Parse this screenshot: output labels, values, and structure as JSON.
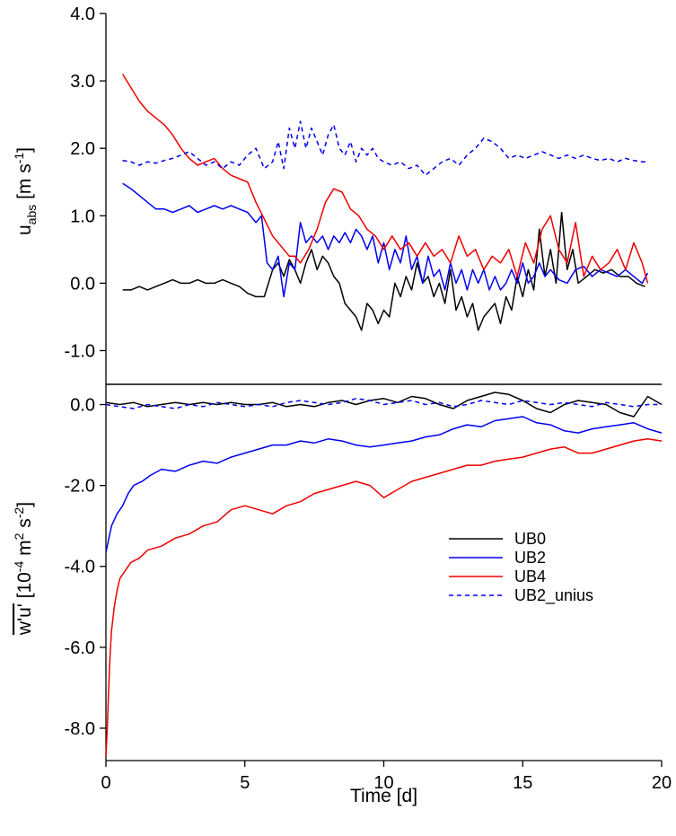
{
  "chart_data": [
    {
      "type": "line",
      "panel": "top",
      "ylabel": "u_abs [m s^-1]",
      "ylabel_parts": {
        "main": "u",
        "sub": "abs",
        "bracket_open": " [m s",
        "sup": "-1",
        "bracket_close": "]"
      },
      "xlim": [
        0,
        20
      ],
      "ylim": [
        -1.5,
        4.0
      ],
      "yticks": [
        -1.0,
        0.0,
        1.0,
        2.0,
        3.0,
        4.0
      ],
      "ytick_labels": [
        "-1.0",
        "0.0",
        "1.0",
        "2.0",
        "3.0",
        "4.0"
      ],
      "series": [
        {
          "name": "UB0",
          "color": "#000000",
          "dash": "solid",
          "x": [
            0.6,
            0.9,
            1.2,
            1.5,
            1.8,
            2.1,
            2.4,
            2.7,
            3.0,
            3.3,
            3.6,
            3.9,
            4.2,
            4.5,
            4.8,
            5.1,
            5.4,
            5.7,
            6.0,
            6.2,
            6.4,
            6.6,
            6.8,
            7.0,
            7.2,
            7.4,
            7.6,
            7.8,
            8.0,
            8.2,
            8.4,
            8.6,
            8.8,
            9.0,
            9.2,
            9.4,
            9.6,
            9.8,
            10.0,
            10.2,
            10.4,
            10.6,
            10.8,
            11.0,
            11.2,
            11.4,
            11.6,
            11.8,
            12.0,
            12.2,
            12.4,
            12.6,
            12.8,
            13.0,
            13.2,
            13.4,
            13.6,
            13.8,
            14.0,
            14.2,
            14.4,
            14.6,
            14.8,
            15.0,
            15.2,
            15.4,
            15.6,
            15.8,
            16.0,
            16.2,
            16.4,
            16.6,
            16.8,
            17.0,
            17.3,
            17.6,
            17.9,
            18.2,
            18.5,
            18.8,
            19.1,
            19.4
          ],
          "values": [
            -0.1,
            -0.1,
            -0.05,
            -0.1,
            -0.05,
            0.0,
            0.05,
            0.0,
            0.0,
            0.05,
            0.0,
            0.0,
            0.05,
            0.0,
            -0.05,
            -0.15,
            -0.2,
            -0.2,
            0.2,
            0.3,
            0.1,
            0.35,
            0.2,
            0.0,
            0.3,
            0.5,
            0.2,
            0.4,
            0.3,
            0.1,
            0.0,
            -0.3,
            -0.4,
            -0.5,
            -0.7,
            -0.3,
            -0.4,
            -0.6,
            -0.4,
            -0.5,
            0.0,
            -0.2,
            0.1,
            -0.1,
            0.3,
            0.0,
            0.1,
            -0.2,
            0.0,
            -0.3,
            0.2,
            -0.4,
            -0.2,
            -0.5,
            -0.3,
            -0.7,
            -0.5,
            -0.4,
            -0.3,
            -0.6,
            -0.2,
            -0.4,
            0.1,
            -0.2,
            0.2,
            -0.1,
            0.8,
            0.1,
            0.5,
            0.0,
            1.05,
            0.2,
            0.5,
            0.0,
            0.1,
            0.2,
            0.15,
            0.2,
            0.1,
            0.1,
            0.0,
            -0.05
          ]
        },
        {
          "name": "UB2",
          "color": "#0000ee",
          "dash": "solid",
          "x": [
            0.6,
            0.9,
            1.2,
            1.5,
            1.8,
            2.1,
            2.4,
            2.7,
            3.0,
            3.3,
            3.6,
            3.9,
            4.2,
            4.5,
            4.8,
            5.1,
            5.4,
            5.6,
            5.8,
            6.0,
            6.2,
            6.4,
            6.6,
            6.8,
            7.0,
            7.2,
            7.4,
            7.6,
            7.8,
            8.0,
            8.2,
            8.4,
            8.6,
            8.8,
            9.0,
            9.2,
            9.4,
            9.6,
            9.8,
            10.0,
            10.2,
            10.4,
            10.6,
            10.8,
            11.0,
            11.2,
            11.4,
            11.6,
            11.8,
            12.0,
            12.2,
            12.4,
            12.6,
            12.8,
            13.0,
            13.2,
            13.4,
            13.6,
            13.8,
            14.0,
            14.2,
            14.4,
            14.6,
            14.8,
            15.0,
            15.2,
            15.4,
            15.6,
            15.8,
            16.0,
            16.3,
            16.6,
            16.9,
            17.2,
            17.5,
            17.8,
            18.1,
            18.4,
            18.7,
            19.0,
            19.3,
            19.5
          ],
          "values": [
            1.48,
            1.4,
            1.3,
            1.2,
            1.1,
            1.1,
            1.05,
            1.1,
            1.15,
            1.05,
            1.1,
            1.15,
            1.1,
            1.15,
            1.1,
            1.05,
            0.9,
            1.0,
            0.3,
            0.2,
            0.4,
            -0.2,
            0.3,
            0.2,
            0.9,
            0.6,
            0.7,
            0.6,
            0.7,
            0.5,
            0.7,
            0.6,
            0.75,
            0.6,
            0.8,
            0.7,
            0.5,
            0.7,
            0.3,
            0.6,
            0.2,
            0.5,
            0.3,
            0.7,
            0.2,
            0.4,
            0.0,
            0.4,
            0.1,
            0.2,
            -0.1,
            0.3,
            0.0,
            0.2,
            -0.1,
            0.2,
            0.0,
            0.2,
            -0.1,
            0.1,
            -0.1,
            0.0,
            0.2,
            0.0,
            0.3,
            0.0,
            0.1,
            0.3,
            0.1,
            0.2,
            0.05,
            0.0,
            0.2,
            0.25,
            0.1,
            0.2,
            0.15,
            0.1,
            0.2,
            0.1,
            0.0,
            0.15
          ]
        },
        {
          "name": "UB4",
          "color": "#ee0000",
          "dash": "solid",
          "x": [
            0.6,
            0.9,
            1.2,
            1.5,
            1.8,
            2.1,
            2.4,
            2.7,
            3.0,
            3.3,
            3.6,
            3.9,
            4.2,
            4.5,
            4.8,
            5.1,
            5.4,
            5.7,
            6.0,
            6.2,
            6.4,
            6.6,
            6.8,
            7.0,
            7.3,
            7.6,
            7.9,
            8.2,
            8.5,
            8.8,
            9.1,
            9.4,
            9.7,
            10.0,
            10.3,
            10.6,
            10.9,
            11.2,
            11.5,
            11.8,
            12.1,
            12.4,
            12.7,
            13.0,
            13.3,
            13.6,
            13.9,
            14.2,
            14.5,
            14.8,
            15.1,
            15.4,
            15.7,
            16.0,
            16.3,
            16.6,
            16.9,
            17.2,
            17.5,
            17.8,
            18.1,
            18.4,
            18.7,
            19.0,
            19.3,
            19.5
          ],
          "values": [
            3.1,
            2.9,
            2.7,
            2.55,
            2.45,
            2.35,
            2.2,
            2.0,
            1.85,
            1.75,
            1.8,
            1.85,
            1.7,
            1.6,
            1.55,
            1.5,
            1.2,
            0.95,
            0.7,
            0.6,
            0.5,
            0.4,
            0.4,
            0.3,
            0.5,
            0.8,
            1.2,
            1.4,
            1.35,
            1.1,
            1.0,
            0.8,
            0.7,
            0.5,
            0.7,
            0.5,
            0.6,
            0.4,
            0.6,
            0.4,
            0.5,
            0.3,
            0.7,
            0.4,
            0.5,
            0.2,
            0.4,
            0.3,
            0.5,
            0.1,
            0.6,
            0.3,
            0.8,
            1.0,
            0.5,
            0.3,
            0.9,
            0.1,
            0.4,
            0.2,
            0.3,
            0.5,
            0.2,
            0.6,
            0.3,
            0.0
          ]
        },
        {
          "name": "UB2_unius",
          "color": "#0000ee",
          "dash": "dashed",
          "x": [
            0.6,
            0.9,
            1.2,
            1.5,
            1.8,
            2.1,
            2.4,
            2.7,
            3.0,
            3.3,
            3.6,
            3.9,
            4.2,
            4.5,
            4.8,
            5.1,
            5.4,
            5.7,
            6.0,
            6.2,
            6.4,
            6.6,
            6.8,
            7.0,
            7.2,
            7.4,
            7.6,
            7.8,
            8.0,
            8.2,
            8.4,
            8.6,
            8.8,
            9.0,
            9.2,
            9.4,
            9.6,
            9.8,
            10.0,
            10.3,
            10.6,
            10.9,
            11.2,
            11.5,
            11.8,
            12.1,
            12.4,
            12.7,
            13.0,
            13.3,
            13.6,
            13.9,
            14.2,
            14.5,
            14.8,
            15.1,
            15.4,
            15.7,
            16.0,
            16.3,
            16.6,
            16.9,
            17.2,
            17.5,
            17.8,
            18.1,
            18.4,
            18.7,
            19.0,
            19.3,
            19.5
          ],
          "values": [
            1.82,
            1.8,
            1.75,
            1.8,
            1.78,
            1.82,
            1.85,
            1.9,
            1.95,
            1.85,
            1.75,
            1.8,
            1.7,
            1.8,
            1.75,
            1.9,
            2.0,
            1.7,
            1.8,
            2.1,
            1.7,
            2.3,
            2.0,
            2.4,
            2.0,
            2.3,
            2.1,
            1.9,
            2.2,
            2.35,
            2.0,
            1.9,
            2.1,
            1.8,
            2.0,
            1.9,
            2.0,
            1.85,
            1.8,
            1.75,
            1.8,
            1.7,
            1.75,
            1.6,
            1.7,
            1.8,
            1.85,
            1.75,
            1.9,
            2.0,
            2.15,
            2.1,
            2.0,
            1.85,
            1.9,
            1.85,
            1.9,
            1.95,
            1.9,
            1.85,
            1.9,
            1.85,
            1.9,
            1.85,
            1.82,
            1.85,
            1.8,
            1.85,
            1.82,
            1.8,
            1.8
          ]
        }
      ]
    },
    {
      "type": "line",
      "panel": "bottom",
      "xlabel": "Time [d]",
      "ylabel": "w'u' [10^-4 m^2 s^-2]",
      "ylabel_parts": {
        "main": "w'u'",
        "bracket_open": " [10",
        "sup1": "-4",
        "mid": " m",
        "sup2": "2",
        "mid2": " s",
        "sup3": "-2",
        "bracket_close": "]"
      },
      "xlim": [
        0,
        20
      ],
      "xticks": [
        0,
        5,
        10,
        15,
        20
      ],
      "xtick_labels": [
        "0",
        "5",
        "10",
        "15",
        "20"
      ],
      "ylim": [
        -8.8,
        0.5
      ],
      "yticks": [
        -8.0,
        -6.0,
        -4.0,
        -2.0,
        0.0
      ],
      "ytick_labels": [
        "-8.0",
        "-6.0",
        "-4.0",
        "-2.0",
        "0.0"
      ],
      "legend_position": "right-middle",
      "series": [
        {
          "name": "UB0",
          "color": "#000000",
          "dash": "solid",
          "x": [
            0.0,
            0.5,
            1.0,
            1.5,
            2.0,
            2.5,
            3.0,
            3.5,
            4.0,
            4.5,
            5.0,
            5.5,
            6.0,
            6.5,
            7.0,
            7.5,
            8.0,
            8.5,
            9.0,
            9.5,
            10.0,
            10.5,
            11.0,
            11.5,
            12.0,
            12.5,
            13.0,
            13.5,
            14.0,
            14.5,
            15.0,
            15.5,
            16.0,
            16.5,
            17.0,
            17.5,
            18.0,
            18.5,
            19.0,
            19.5,
            20.0
          ],
          "values": [
            0.05,
            0.0,
            0.05,
            -0.05,
            0.0,
            0.05,
            0.0,
            0.05,
            0.0,
            0.05,
            0.0,
            0.0,
            0.05,
            -0.05,
            0.0,
            -0.05,
            0.05,
            0.1,
            0.0,
            0.1,
            0.15,
            0.05,
            0.2,
            0.15,
            0.0,
            -0.1,
            0.1,
            0.2,
            0.3,
            0.25,
            0.1,
            -0.1,
            -0.2,
            0.0,
            0.1,
            0.05,
            0.0,
            -0.2,
            -0.3,
            0.2,
            0.0
          ]
        },
        {
          "name": "UB2",
          "color": "#0000ee",
          "dash": "solid",
          "x": [
            0.0,
            0.2,
            0.4,
            0.6,
            0.8,
            1.0,
            1.3,
            1.6,
            2.0,
            2.5,
            3.0,
            3.5,
            4.0,
            4.5,
            5.0,
            5.5,
            6.0,
            6.5,
            7.0,
            7.5,
            8.0,
            8.5,
            9.0,
            9.5,
            10.0,
            10.5,
            11.0,
            11.5,
            12.0,
            12.5,
            13.0,
            13.5,
            14.0,
            14.5,
            15.0,
            15.5,
            16.0,
            16.5,
            17.0,
            17.5,
            18.0,
            18.5,
            19.0,
            19.5,
            20.0
          ],
          "values": [
            -3.65,
            -3.0,
            -2.7,
            -2.5,
            -2.2,
            -2.0,
            -1.9,
            -1.75,
            -1.6,
            -1.65,
            -1.5,
            -1.4,
            -1.45,
            -1.3,
            -1.2,
            -1.1,
            -1.0,
            -1.0,
            -0.9,
            -0.95,
            -0.85,
            -0.9,
            -1.0,
            -1.05,
            -1.0,
            -0.95,
            -0.9,
            -0.8,
            -0.75,
            -0.6,
            -0.5,
            -0.55,
            -0.4,
            -0.35,
            -0.3,
            -0.45,
            -0.5,
            -0.65,
            -0.7,
            -0.6,
            -0.55,
            -0.5,
            -0.45,
            -0.6,
            -0.7
          ]
        },
        {
          "name": "UB4",
          "color": "#ee0000",
          "dash": "solid",
          "x": [
            0.0,
            0.05,
            0.1,
            0.15,
            0.2,
            0.3,
            0.4,
            0.5,
            0.7,
            0.9,
            1.2,
            1.5,
            2.0,
            2.5,
            3.0,
            3.5,
            4.0,
            4.5,
            5.0,
            5.5,
            6.0,
            6.5,
            7.0,
            7.5,
            8.0,
            8.5,
            9.0,
            9.5,
            10.0,
            10.5,
            11.0,
            11.5,
            12.0,
            12.5,
            13.0,
            13.5,
            14.0,
            14.5,
            15.0,
            15.5,
            16.0,
            16.5,
            17.0,
            17.5,
            18.0,
            18.5,
            19.0,
            19.5,
            20.0
          ],
          "values": [
            -8.7,
            -8.0,
            -7.0,
            -6.2,
            -5.6,
            -5.0,
            -4.6,
            -4.3,
            -4.1,
            -3.9,
            -3.8,
            -3.6,
            -3.5,
            -3.3,
            -3.2,
            -3.0,
            -2.9,
            -2.6,
            -2.5,
            -2.6,
            -2.7,
            -2.5,
            -2.4,
            -2.2,
            -2.1,
            -2.0,
            -1.9,
            -2.0,
            -2.3,
            -2.1,
            -1.9,
            -1.8,
            -1.7,
            -1.6,
            -1.5,
            -1.5,
            -1.4,
            -1.35,
            -1.3,
            -1.2,
            -1.1,
            -1.05,
            -1.2,
            -1.2,
            -1.1,
            -1.0,
            -0.9,
            -0.85,
            -0.9
          ]
        },
        {
          "name": "UB2_unius",
          "color": "#0000ee",
          "dash": "dashed",
          "x": [
            0.0,
            0.5,
            1.0,
            1.5,
            2.0,
            2.5,
            3.0,
            3.5,
            4.0,
            4.5,
            5.0,
            5.5,
            6.0,
            6.5,
            7.0,
            7.5,
            8.0,
            8.5,
            9.0,
            9.5,
            10.0,
            10.5,
            11.0,
            11.5,
            12.0,
            12.5,
            13.0,
            13.5,
            14.0,
            14.5,
            15.0,
            15.5,
            16.0,
            16.5,
            17.0,
            17.5,
            18.0,
            18.5,
            19.0,
            19.5,
            20.0
          ],
          "values": [
            0.0,
            -0.05,
            -0.1,
            0.0,
            -0.05,
            -0.1,
            0.0,
            -0.05,
            0.05,
            0.0,
            -0.05,
            0.0,
            -0.05,
            0.05,
            0.1,
            0.05,
            0.0,
            0.05,
            0.15,
            0.1,
            0.0,
            0.05,
            0.1,
            0.0,
            0.05,
            -0.05,
            0.0,
            0.1,
            0.05,
            0.0,
            0.1,
            0.05,
            0.0,
            0.05,
            0.0,
            -0.05,
            0.05,
            0.0,
            -0.05,
            0.0,
            0.0
          ]
        }
      ]
    }
  ]
}
